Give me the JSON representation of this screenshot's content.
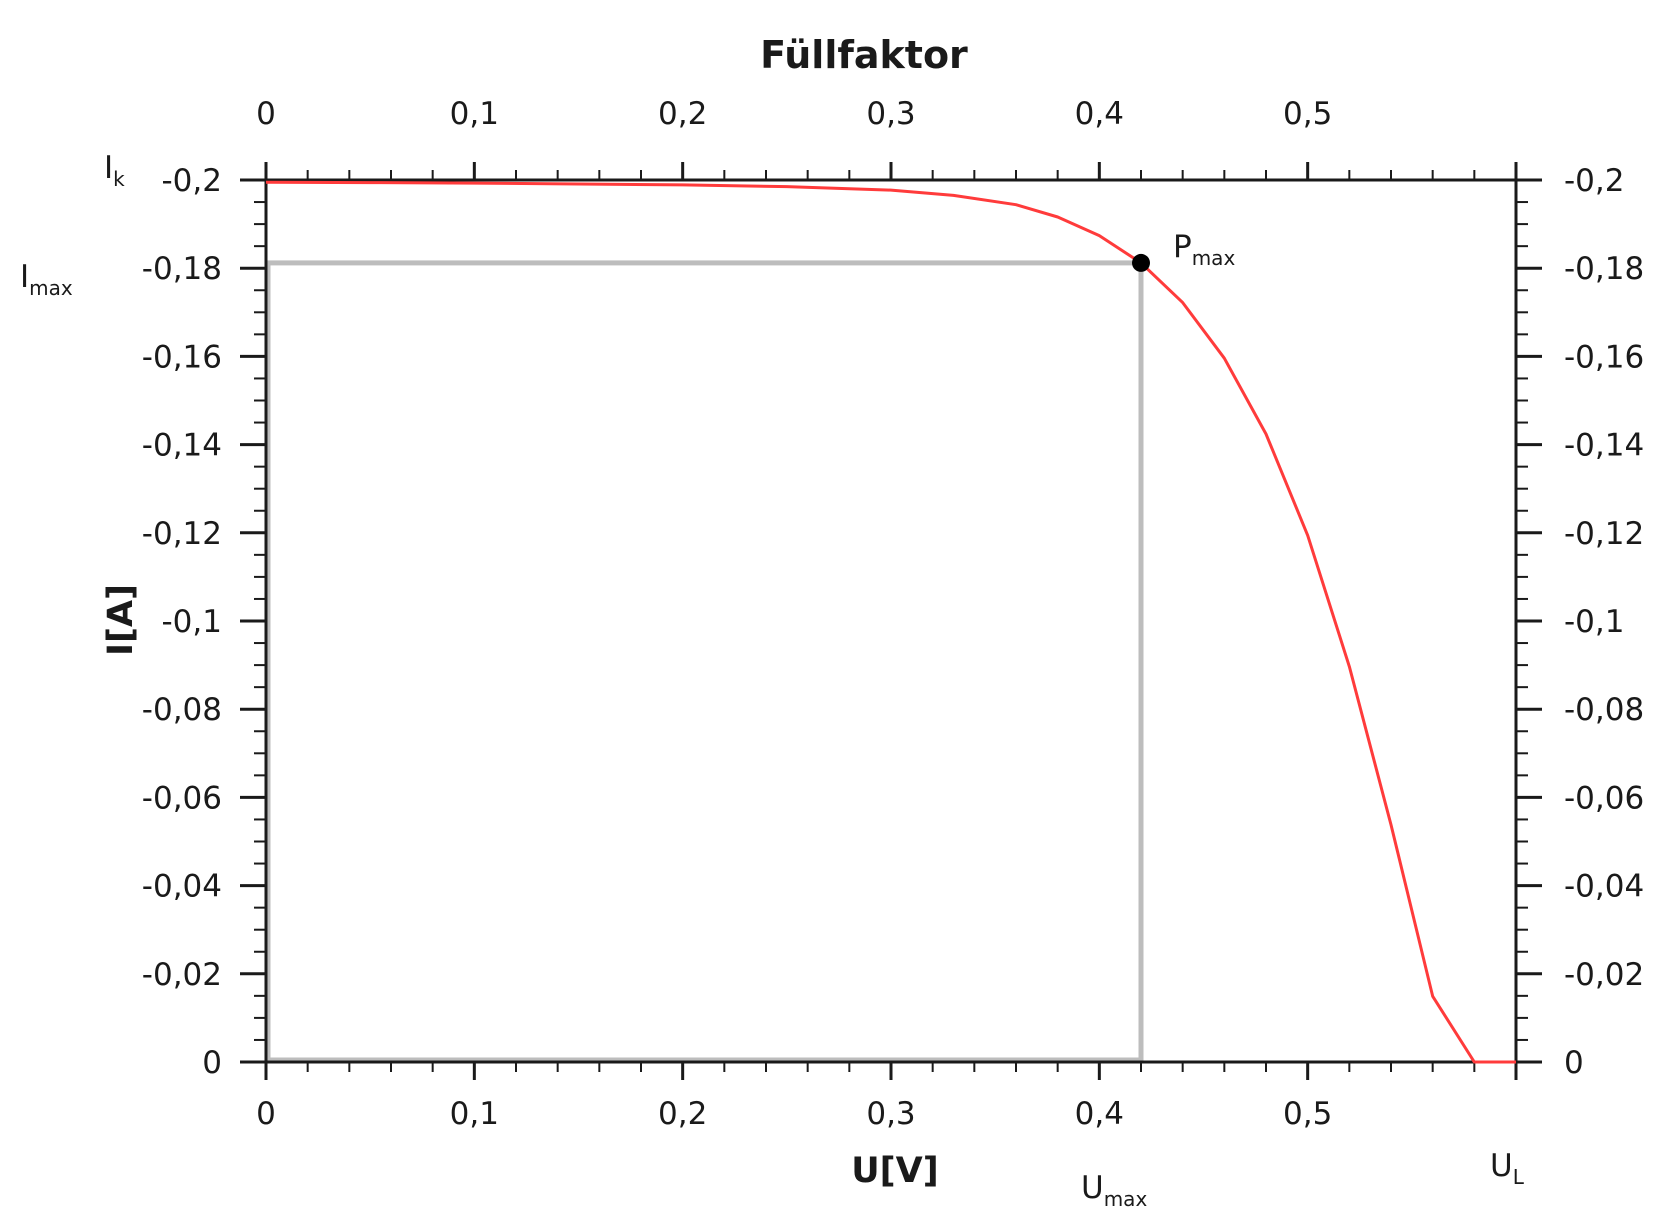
{
  "chart_data": {
    "type": "line",
    "title": "Füllfaktor",
    "xlabel": "U[V]",
    "ylabel": "I[A]",
    "xlim": [
      0,
      0.6
    ],
    "ylim": [
      -0.2,
      0
    ],
    "y_reversed": true,
    "x_ticks": [
      0,
      0.1,
      0.2,
      0.3,
      0.4,
      0.5
    ],
    "x_tick_labels": [
      "0",
      "0,1",
      "0,2",
      "0,3",
      "0,4",
      "0,5"
    ],
    "y_ticks": [
      -0.2,
      -0.18,
      -0.16,
      -0.14,
      -0.12,
      -0.1,
      -0.08,
      -0.06,
      -0.04,
      -0.02,
      0
    ],
    "y_tick_labels": [
      "-0,2",
      "-0,18",
      "-0,16",
      "-0,14",
      "-0,12",
      "-0,1",
      "-0,08",
      "-0,06",
      "-0,04",
      "-0,02",
      "0"
    ],
    "secondary_axes": {
      "top_x": true,
      "right_y": true
    },
    "grid": false,
    "series": [
      {
        "color": "#ff3b3b",
        "x": [
          0,
          0.05,
          0.1,
          0.15,
          0.2,
          0.25,
          0.3,
          0.33,
          0.36,
          0.38,
          0.4,
          0.42,
          0.44,
          0.46,
          0.48,
          0.5,
          0.52,
          0.54,
          0.56,
          0.58,
          0.6
        ],
        "y": [
          -0.1995,
          -0.1994,
          -0.1993,
          -0.1991,
          -0.1989,
          -0.1985,
          -0.1977,
          -0.1965,
          -0.1944,
          -0.1916,
          -0.1874,
          -0.1812,
          -0.1722,
          -0.1596,
          -0.1424,
          -0.1194,
          -0.0897,
          -0.0538,
          -0.0149,
          0.0,
          0.0
        ]
      }
    ],
    "annotations": [
      {
        "label": "P",
        "sub": "max",
        "x": 0.42,
        "y": -0.1812
      },
      {
        "label": "I",
        "sub": "k",
        "y": -0.2
      },
      {
        "label": "I",
        "sub": "max",
        "y": -0.1812
      },
      {
        "label": "U",
        "sub": "max",
        "x": 0.42
      },
      {
        "label": "U",
        "sub": "L",
        "x": 0.6
      }
    ],
    "mpp_rectangle": {
      "x": [
        0,
        0.42
      ],
      "y": [
        -0.1812,
        0
      ],
      "color": "#bdbdbd"
    },
    "colors": {
      "curve": "#ff3b3b",
      "rectangle": "#bdbdbd",
      "frame": "#1a1a1a",
      "marker": "#000000"
    }
  }
}
